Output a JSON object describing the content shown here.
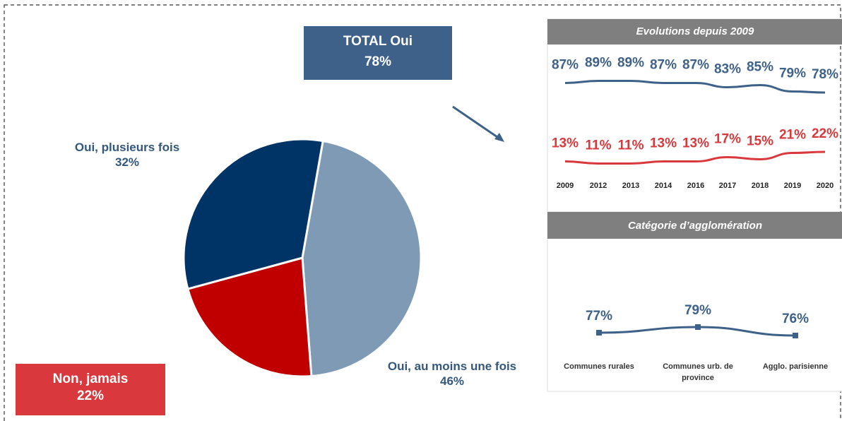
{
  "chart_data": [
    {
      "type": "pie",
      "total": {
        "label": "TOTAL Oui",
        "value": 78,
        "value_label": "78%",
        "color": "#3e6189"
      },
      "categories": [
        "Oui, au moins une fois",
        "Non, jamais",
        "Oui, plusieurs fois"
      ],
      "values": [
        46,
        22,
        32
      ],
      "value_labels": [
        "46%",
        "22%",
        "32%"
      ],
      "colors": [
        "#7f9ab5",
        "#c00000",
        "#003366"
      ],
      "label_colors": [
        "#34577e",
        "#ffffff",
        "#34577e"
      ]
    },
    {
      "type": "line",
      "title": "Evolutions depuis 2009",
      "categories": [
        "2009",
        "2012",
        "2013",
        "2014",
        "2016",
        "2017",
        "2018",
        "2019",
        "2020"
      ],
      "series": [
        {
          "name": "Oui",
          "color": "#3e6189",
          "values": [
            87,
            89,
            89,
            87,
            87,
            83,
            85,
            79,
            78
          ],
          "value_labels": [
            "87%",
            "89%",
            "89%",
            "87%",
            "87%",
            "83%",
            "85%",
            "79%",
            "78%"
          ]
        },
        {
          "name": "Non",
          "color": "#d9393c",
          "values": [
            13,
            11,
            11,
            13,
            13,
            17,
            15,
            21,
            22
          ],
          "value_labels": [
            "13%",
            "11%",
            "11%",
            "13%",
            "13%",
            "17%",
            "15%",
            "21%",
            "22%"
          ]
        }
      ]
    },
    {
      "type": "line",
      "title": "Catégorie d’agglomération",
      "categories": [
        "Communes rurales",
        "Communes urb. de province",
        "Agglo. parisienne"
      ],
      "series": [
        {
          "name": "Oui",
          "color": "#3e6189",
          "values": [
            77,
            79,
            76
          ],
          "value_labels": [
            "77%",
            "79%",
            "76%"
          ]
        }
      ]
    }
  ]
}
